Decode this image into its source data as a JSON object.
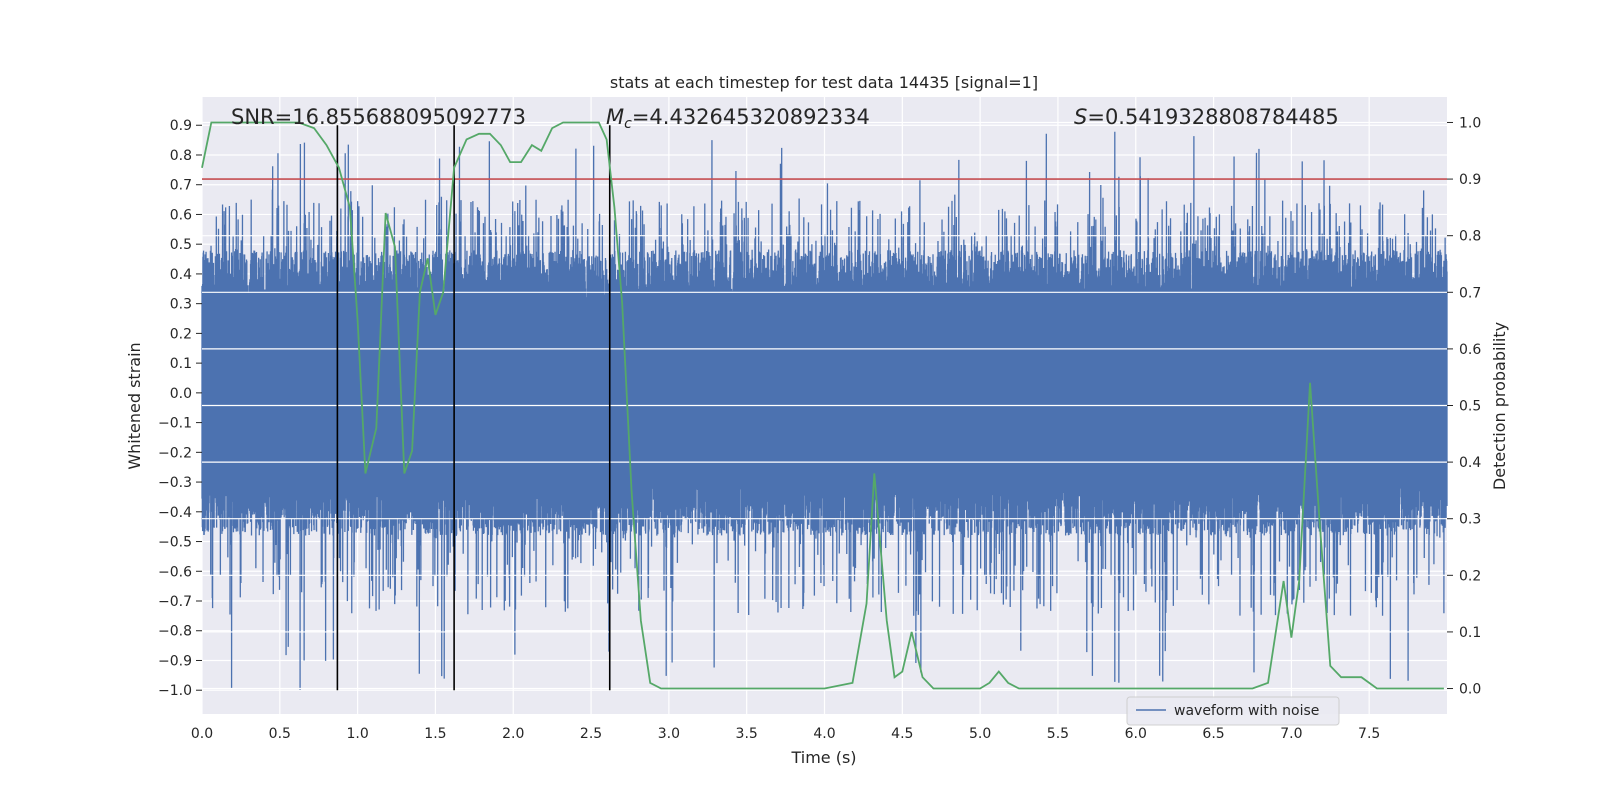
{
  "chart_data": {
    "type": "line",
    "title": "stats at each timestep for test data 14435 [signal=1]",
    "xlabel": "Time (s)",
    "ylabel_left": "Whitened strain",
    "ylabel_right": "Detection probability",
    "xlim": [
      0.0,
      8.0
    ],
    "ylim_left": [
      -1.08,
      0.995
    ],
    "ylim_right": [
      -0.045,
      1.045
    ],
    "x_ticks": [
      "0.0",
      "0.5",
      "1.0",
      "1.5",
      "2.0",
      "2.5",
      "3.0",
      "3.5",
      "4.0",
      "4.5",
      "5.0",
      "5.5",
      "6.0",
      "6.5",
      "7.0",
      "7.5"
    ],
    "x_tick_values": [
      0.0,
      0.5,
      1.0,
      1.5,
      2.0,
      2.5,
      3.0,
      3.5,
      4.0,
      4.5,
      5.0,
      5.5,
      6.0,
      6.5,
      7.0,
      7.5
    ],
    "y_left_ticks": [
      "0.9",
      "0.8",
      "0.7",
      "0.6",
      "0.5",
      "0.4",
      "0.3",
      "0.2",
      "0.1",
      "0.0",
      "−0.1",
      "−0.2",
      "−0.3",
      "−0.4",
      "−0.5",
      "−0.6",
      "−0.7",
      "−0.8",
      "−0.9",
      "−1.0"
    ],
    "y_left_tick_values": [
      0.9,
      0.8,
      0.7,
      0.6,
      0.5,
      0.4,
      0.3,
      0.2,
      0.1,
      0.0,
      -0.1,
      -0.2,
      -0.3,
      -0.4,
      -0.5,
      -0.6,
      -0.7,
      -0.8,
      -0.9,
      -1.0
    ],
    "y_right_ticks": [
      "1.0",
      "0.9",
      "0.8",
      "0.7",
      "0.6",
      "0.5",
      "0.4",
      "0.3",
      "0.2",
      "0.1",
      "0.0"
    ],
    "y_right_tick_values": [
      1.0,
      0.9,
      0.8,
      0.7,
      0.6,
      0.5,
      0.4,
      0.3,
      0.2,
      0.1,
      0.0
    ],
    "annotations": {
      "snr": "SNR=16.855688095092773",
      "mc_symbol": "M",
      "mc_sub": "c",
      "mc_value": "=4.432645320892334",
      "s_symbol": "S",
      "s_value": "=0.5419328808784485"
    },
    "vertical_lines_x": [
      0.87,
      1.62,
      2.62
    ],
    "threshold_right": 0.9,
    "waveform": {
      "name": "waveform with noise",
      "color": "#4c72b0",
      "samples": 4000,
      "typical_range": [
        -0.5,
        0.6
      ],
      "max_peak": 0.88,
      "min_peak": -1.0
    },
    "detection_probability": {
      "color": "#55a868",
      "points": [
        [
          0.0,
          0.92
        ],
        [
          0.06,
          1.0
        ],
        [
          0.2,
          1.0
        ],
        [
          0.5,
          1.0
        ],
        [
          0.62,
          1.0
        ],
        [
          0.72,
          0.99
        ],
        [
          0.8,
          0.96
        ],
        [
          0.88,
          0.92
        ],
        [
          0.95,
          0.85
        ],
        [
          1.0,
          0.65
        ],
        [
          1.05,
          0.38
        ],
        [
          1.12,
          0.46
        ],
        [
          1.18,
          0.84
        ],
        [
          1.24,
          0.78
        ],
        [
          1.3,
          0.38
        ],
        [
          1.35,
          0.42
        ],
        [
          1.4,
          0.7
        ],
        [
          1.45,
          0.76
        ],
        [
          1.5,
          0.66
        ],
        [
          1.55,
          0.7
        ],
        [
          1.62,
          0.92
        ],
        [
          1.7,
          0.97
        ],
        [
          1.78,
          0.98
        ],
        [
          1.85,
          0.98
        ],
        [
          1.92,
          0.96
        ],
        [
          1.98,
          0.93
        ],
        [
          2.05,
          0.93
        ],
        [
          2.12,
          0.96
        ],
        [
          2.18,
          0.95
        ],
        [
          2.25,
          0.99
        ],
        [
          2.32,
          1.0
        ],
        [
          2.45,
          1.0
        ],
        [
          2.55,
          1.0
        ],
        [
          2.6,
          0.97
        ],
        [
          2.65,
          0.85
        ],
        [
          2.7,
          0.68
        ],
        [
          2.76,
          0.35
        ],
        [
          2.82,
          0.12
        ],
        [
          2.88,
          0.01
        ],
        [
          2.95,
          0.0
        ],
        [
          3.2,
          0.0
        ],
        [
          3.6,
          0.0
        ],
        [
          4.0,
          0.0
        ],
        [
          4.18,
          0.01
        ],
        [
          4.27,
          0.15
        ],
        [
          4.32,
          0.38
        ],
        [
          4.4,
          0.12
        ],
        [
          4.45,
          0.02
        ],
        [
          4.5,
          0.03
        ],
        [
          4.56,
          0.1
        ],
        [
          4.63,
          0.02
        ],
        [
          4.7,
          0.0
        ],
        [
          4.8,
          0.0
        ],
        [
          5.0,
          0.0
        ],
        [
          5.06,
          0.01
        ],
        [
          5.12,
          0.03
        ],
        [
          5.18,
          0.01
        ],
        [
          5.25,
          0.0
        ],
        [
          5.6,
          0.0
        ],
        [
          5.9,
          0.0
        ],
        [
          6.0,
          0.0
        ],
        [
          6.2,
          0.0
        ],
        [
          6.5,
          0.0
        ],
        [
          6.75,
          0.0
        ],
        [
          6.85,
          0.01
        ],
        [
          6.95,
          0.19
        ],
        [
          7.0,
          0.09
        ],
        [
          7.05,
          0.19
        ],
        [
          7.12,
          0.54
        ],
        [
          7.18,
          0.3
        ],
        [
          7.25,
          0.04
        ],
        [
          7.32,
          0.02
        ],
        [
          7.4,
          0.02
        ],
        [
          7.45,
          0.02
        ],
        [
          7.55,
          0.0
        ],
        [
          7.7,
          0.0
        ],
        [
          7.8,
          0.0
        ],
        [
          7.98,
          0.0
        ]
      ]
    },
    "legend": {
      "label": "waveform with noise",
      "placement": "lower-right"
    }
  }
}
